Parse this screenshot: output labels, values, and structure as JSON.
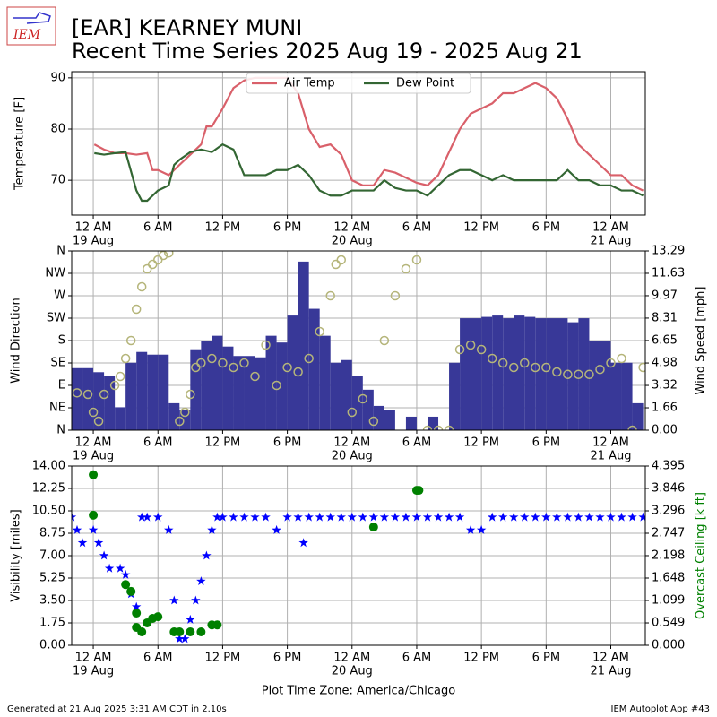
{
  "title": [
    "[EAR] KEARNEY MUNI",
    "Recent Time Series 2025 Aug 19 - 2025 Aug 21"
  ],
  "logo_text": "IEM",
  "footer": {
    "left": "Generated at 21 Aug 2025 3:31 AM CDT in 2.10s",
    "right": "IEM Autoplot App #43"
  },
  "x_label": "Plot Time Zone: America/Chicago",
  "chart_data": [
    {
      "type": "line",
      "ylabel": "Temperature [F]",
      "xlim": [
        -2,
        51.2
      ],
      "ylim": [
        63.2,
        91.2
      ],
      "yticks": [
        70,
        80,
        90
      ],
      "xticks": [
        {
          "value": 0,
          "label": "12 AM"
        },
        {
          "value": 6,
          "label": "6 AM"
        },
        {
          "value": 12,
          "label": "12 PM"
        },
        {
          "value": 18,
          "label": "6 PM"
        },
        {
          "value": 24,
          "label": "12 AM"
        },
        {
          "value": 30,
          "label": "6 AM"
        },
        {
          "value": 36,
          "label": "12 PM"
        },
        {
          "value": 42,
          "label": "6 PM"
        },
        {
          "value": 48,
          "label": "12 AM"
        }
      ],
      "xdates": [
        {
          "value": 0,
          "label": "19 Aug"
        },
        {
          "value": 24,
          "label": "20 Aug"
        },
        {
          "value": 48,
          "label": "21 Aug"
        }
      ],
      "grid": true,
      "legend": "upper center",
      "series": [
        {
          "name": "Air Temp",
          "type": "line",
          "color": "#d9606a",
          "x": [
            0.1,
            1,
            2,
            3,
            4,
            5,
            5.5,
            6,
            7,
            8,
            9,
            10,
            10.5,
            11,
            12,
            13,
            14,
            15,
            18,
            19,
            20,
            21,
            22,
            23,
            24,
            25,
            26,
            27,
            28,
            29,
            30,
            31,
            32,
            33,
            34,
            35,
            36,
            37,
            38,
            39,
            40,
            41,
            42,
            43,
            44,
            45,
            46,
            47,
            48,
            49,
            50,
            51
          ],
          "values": [
            77,
            76,
            75.3,
            75.3,
            75,
            75.3,
            72,
            72,
            71,
            73,
            75,
            77,
            80.5,
            80.5,
            84,
            88,
            89.5,
            90,
            90,
            87,
            80,
            76.5,
            77,
            75,
            70,
            69,
            69,
            72,
            71.5,
            70.5,
            69.5,
            69,
            71,
            75.5,
            80,
            83,
            84,
            85,
            87,
            87,
            88,
            89,
            88,
            86,
            82,
            77,
            75,
            73,
            71,
            71,
            69,
            68
          ]
        },
        {
          "name": "Dew Point",
          "type": "line",
          "color": "#336633",
          "x": [
            0.1,
            1,
            2,
            3,
            4,
            4.5,
            5,
            6,
            7,
            7.5,
            8,
            9,
            10,
            11,
            12,
            13,
            14,
            16,
            17,
            18,
            19,
            20,
            21,
            22,
            23,
            24,
            26,
            27,
            28,
            29,
            30,
            31,
            32,
            33,
            34,
            35,
            36,
            37,
            38,
            39,
            43,
            44,
            45,
            46,
            47,
            48,
            49,
            50,
            51
          ],
          "values": [
            75.3,
            75,
            75.3,
            75.5,
            68,
            66,
            66,
            68,
            69,
            73,
            74,
            75.5,
            76,
            75.5,
            77,
            76,
            71,
            71,
            72,
            72,
            73,
            71,
            68,
            67,
            67,
            68,
            68,
            70,
            68.5,
            68,
            68,
            67,
            69,
            71,
            72,
            72,
            71,
            70,
            71,
            70,
            70,
            72,
            70,
            70,
            69,
            69,
            68,
            68,
            67
          ]
        }
      ]
    },
    {
      "type": "combo",
      "ylabel": "Wind Direction",
      "y2label": "Wind Speed [mph]",
      "xlim": [
        -2,
        51.2
      ],
      "ylim": [
        0,
        360
      ],
      "yticks": [
        {
          "value": 0,
          "label": "N"
        },
        {
          "value": 45,
          "label": "NE"
        },
        {
          "value": 90,
          "label": "E"
        },
        {
          "value": 135,
          "label": "SE"
        },
        {
          "value": 180,
          "label": "S"
        },
        {
          "value": 225,
          "label": "SW"
        },
        {
          "value": 270,
          "label": "W"
        },
        {
          "value": 315,
          "label": "NW"
        },
        {
          "value": 360,
          "label": "N"
        }
      ],
      "y2lim": [
        0,
        13.29
      ],
      "y2ticks": [
        {
          "value": 0,
          "label": "0.00"
        },
        1.66,
        3.32,
        4.98,
        6.65,
        8.31,
        9.97,
        11.63,
        13.29
      ],
      "xticks": [
        {
          "value": 0,
          "label": "12 AM"
        },
        {
          "value": 6,
          "label": "6 AM"
        },
        {
          "value": 12,
          "label": "12 PM"
        },
        {
          "value": 18,
          "label": "6 PM"
        },
        {
          "value": 24,
          "label": "12 AM"
        },
        {
          "value": 30,
          "label": "6 AM"
        },
        {
          "value": 36,
          "label": "12 PM"
        },
        {
          "value": 42,
          "label": "6 PM"
        },
        {
          "value": 48,
          "label": "12 AM"
        }
      ],
      "xdates": [
        {
          "value": 0,
          "label": "19 Aug"
        },
        {
          "value": 24,
          "label": "20 Aug"
        },
        {
          "value": 48,
          "label": "21 Aug"
        }
      ],
      "grid": true,
      "series": [
        {
          "type": "bar",
          "axis": "y2",
          "color": "#383898",
          "x": [
            -2,
            -1,
            0,
            1,
            2,
            3,
            4,
            5,
            6,
            7,
            8,
            9,
            10,
            11,
            12,
            13,
            14,
            15,
            16,
            17,
            18,
            19,
            20,
            21,
            22,
            23,
            24,
            25,
            26,
            27,
            28,
            29,
            30,
            31,
            32,
            33,
            34,
            35,
            36,
            37,
            38,
            39,
            40,
            41,
            42,
            43,
            44,
            45,
            46,
            47,
            48,
            49,
            50
          ],
          "values": [
            4.6,
            4.6,
            4.3,
            4.0,
            1.7,
            5.0,
            5.8,
            5.6,
            5.6,
            2.0,
            1.5,
            6.0,
            6.6,
            7.0,
            6.2,
            5.5,
            5.5,
            5.4,
            7.0,
            6.5,
            8.5,
            12.5,
            9.0,
            7.0,
            5.0,
            5.2,
            4.0,
            3.0,
            1.8,
            1.5,
            0,
            1.0,
            0,
            1.0,
            0,
            5.0,
            8.3,
            8.3,
            8.4,
            8.5,
            8.3,
            8.5,
            8.4,
            8.3,
            8.3,
            8.3,
            8.0,
            8.3,
            6.6,
            6.6,
            5.0,
            5.0,
            2.0
          ]
        },
        {
          "type": "scatter",
          "marker": "hollow-circle",
          "color": "#b5b57a",
          "x": [
            -1.5,
            -0.5,
            0,
            0.5,
            1,
            2,
            2.5,
            3,
            3.5,
            4,
            4.5,
            5,
            5.5,
            6,
            6.5,
            7,
            8,
            8.5,
            9,
            9.5,
            10,
            11,
            12,
            13,
            14,
            15,
            16,
            17,
            18,
            19,
            20,
            21,
            22,
            22.5,
            23,
            24,
            25,
            26,
            27,
            28,
            29,
            30,
            31,
            32,
            33,
            34,
            35,
            36,
            37,
            38,
            39,
            40,
            41,
            42,
            43,
            44,
            45,
            46,
            47,
            48,
            49,
            50,
            51
          ],
          "values": [
            75,
            72,
            36,
            18,
            72,
            90,
            108,
            144,
            180,
            243,
            288,
            324,
            333,
            342,
            351,
            356,
            18,
            36,
            72,
            126,
            135,
            144,
            135,
            126,
            135,
            108,
            171,
            90,
            126,
            117,
            144,
            198,
            270,
            333,
            342,
            36,
            63,
            18,
            180,
            270,
            324,
            342,
            0,
            0,
            0,
            162,
            171,
            162,
            144,
            135,
            126,
            135,
            126,
            126,
            117,
            112,
            112,
            112,
            122,
            135,
            144,
            0,
            126
          ]
        }
      ]
    },
    {
      "type": "scatter",
      "ylabel": "Visibility [miles]",
      "y2label": "Overcast Ceiling [k ft]",
      "y2color": "#008000",
      "xlim": [
        -2,
        51.2
      ],
      "ylim": [
        0,
        14
      ],
      "yticks": [
        {
          "value": 0,
          "label": "0.00"
        },
        1.75,
        {
          "value": 3.5,
          "label": "3.50"
        },
        5.25,
        {
          "value": 7,
          "label": "7.00"
        },
        8.75,
        {
          "value": 10.5,
          "label": "10.50"
        },
        12.25,
        {
          "value": 14,
          "label": "14.00"
        }
      ],
      "y2lim": [
        0,
        4.395
      ],
      "y2ticks": [
        {
          "value": 0,
          "label": "0.000"
        },
        0.549,
        1.099,
        1.648,
        2.198,
        2.747,
        3.296,
        3.846,
        4.395
      ],
      "xticks": [
        {
          "value": 0,
          "label": "12 AM"
        },
        {
          "value": 6,
          "label": "6 AM"
        },
        {
          "value": 12,
          "label": "12 PM"
        },
        {
          "value": 18,
          "label": "6 PM"
        },
        {
          "value": 24,
          "label": "12 AM"
        },
        {
          "value": 30,
          "label": "6 AM"
        },
        {
          "value": 36,
          "label": "12 PM"
        },
        {
          "value": 42,
          "label": "6 PM"
        },
        {
          "value": 48,
          "label": "12 AM"
        }
      ],
      "xdates": [
        {
          "value": 0,
          "label": "19 Aug"
        },
        {
          "value": 24,
          "label": "20 Aug"
        },
        {
          "value": 48,
          "label": "21 Aug"
        }
      ],
      "grid": true,
      "series": [
        {
          "type": "scatter",
          "marker": "star",
          "color": "#0000ff",
          "x": [
            -2,
            -1.5,
            -1,
            0,
            0.5,
            1,
            1.5,
            2.5,
            3,
            3.5,
            4,
            4.5,
            5,
            6,
            7,
            7.5,
            8,
            8.5,
            9,
            9.5,
            10,
            10.5,
            11,
            11.5,
            12,
            13,
            14,
            15,
            16,
            17,
            18,
            19,
            19.5,
            20,
            21,
            22,
            23,
            24,
            25,
            26,
            27,
            28,
            29,
            30,
            31,
            32,
            33,
            34,
            35,
            36,
            37,
            38,
            39,
            40,
            41,
            42,
            43,
            44,
            45,
            46,
            47,
            48,
            49,
            50,
            51
          ],
          "values": [
            10,
            9,
            8,
            9,
            8,
            7,
            6,
            6,
            5.5,
            4,
            3,
            10,
            10,
            10,
            9,
            3.5,
            0.5,
            0.5,
            2,
            3.5,
            5,
            7,
            9,
            10,
            10,
            10,
            10,
            10,
            10,
            9,
            10,
            10,
            8,
            10,
            10,
            10,
            10,
            10,
            10,
            10,
            10,
            10,
            10,
            10,
            10,
            10,
            10,
            10,
            9,
            9,
            10,
            10,
            10,
            10,
            10,
            10,
            10,
            10,
            10,
            10,
            10,
            10,
            10,
            10,
            10
          ]
        },
        {
          "type": "scatter",
          "marker": "circle",
          "axis": "y2",
          "color": "#008000",
          "x": [
            0,
            0,
            3,
            3.5,
            4,
            4,
            4.5,
            5,
            5.5,
            6,
            7.5,
            8,
            9,
            10,
            11,
            11.5,
            26,
            30,
            30.2
          ],
          "values": [
            4.18,
            3.19,
            1.49,
            1.32,
            0.79,
            0.44,
            0.33,
            0.55,
            0.66,
            0.7,
            0.33,
            0.33,
            0.33,
            0.33,
            0.5,
            0.5,
            2.9,
            3.8,
            3.8
          ]
        }
      ]
    }
  ]
}
